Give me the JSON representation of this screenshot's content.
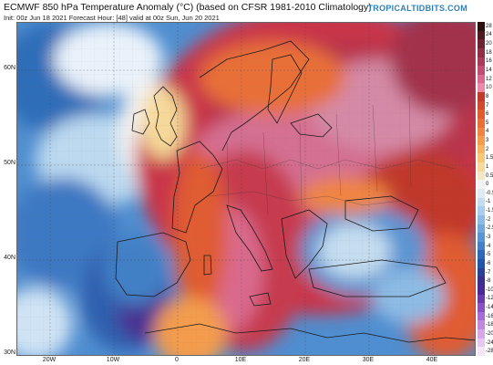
{
  "header": {
    "title": "ECMWF 850 hPa Temperature Anomaly (°C) (based on CFSR 1981-2010 Climatology)",
    "subtitle": "Init: 00z Jun 18 2021   Forecast Hour: [48]   valid at 00z Sun, Jun 20 2021",
    "brand": "TROPICALTIDBITS.COM"
  },
  "map": {
    "lat_labels": [
      "60N",
      "50N",
      "40N",
      "30N"
    ],
    "lon_labels": [
      "20W",
      "10W",
      "0",
      "10E",
      "20E",
      "30E",
      "40E"
    ]
  },
  "colorbar": {
    "labels": [
      "28",
      "24",
      "20",
      "18",
      "16",
      "14",
      "12",
      "10",
      "8",
      "7",
      "6",
      "5",
      "4",
      "3",
      "2",
      "1.5",
      "1",
      "0.5",
      "0",
      "-0.5",
      "-1",
      "-1.5",
      "-2",
      "-2.5",
      "-3",
      "-4",
      "-5",
      "-6",
      "-7",
      "-8",
      "-10",
      "-12",
      "-14",
      "-16",
      "-18",
      "-20",
      "-24",
      "-28"
    ],
    "colors": [
      "#2b1010",
      "#4d1a22",
      "#6e2430",
      "#8e2f45",
      "#a83a5a",
      "#c24d72",
      "#d96a8e",
      "#e98aa8",
      "#c0392b",
      "#d24a2e",
      "#e05b30",
      "#e86f37",
      "#ef8540",
      "#f39c4d",
      "#f6b361",
      "#f7c77a",
      "#f6d99a",
      "#f2e7c4",
      "#f2f2f2",
      "#dfeaf3",
      "#c5ddef",
      "#a9cdea",
      "#8dbbe4",
      "#72a8dc",
      "#5a94d2",
      "#4380c6",
      "#3068b7",
      "#2354a5",
      "#2a4092",
      "#3b2f8a",
      "#4a2a92",
      "#6a3aa8",
      "#8a52bf",
      "#a76cd0",
      "#c089dc",
      "#d6a9e6",
      "#e7c8ef",
      "#f4e6f7"
    ]
  }
}
